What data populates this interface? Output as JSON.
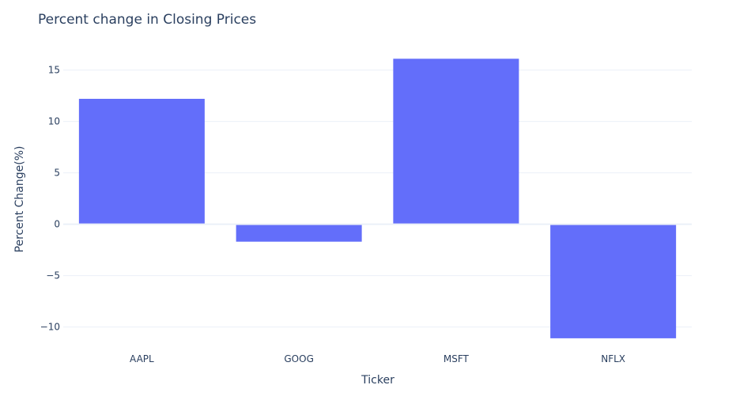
{
  "chart_data": {
    "type": "bar",
    "title": "Percent change in Closing Prices",
    "xlabel": "Ticker",
    "ylabel": "Percent Change(%)",
    "categories": [
      "AAPL",
      "GOOG",
      "MSFT",
      "NFLX"
    ],
    "values": [
      12.2,
      -1.7,
      16.1,
      -11.1
    ],
    "ylim": [
      -11.8,
      17.2
    ],
    "yticks": [
      -10,
      -5,
      0,
      5,
      10,
      15
    ],
    "ytick_labels": [
      "−10",
      "−5",
      "0",
      "5",
      "10",
      "15"
    ],
    "grid": true,
    "bar_color": "#636efa",
    "grid_color": "#ebf0f8",
    "text_color": "#2a3f5f"
  }
}
